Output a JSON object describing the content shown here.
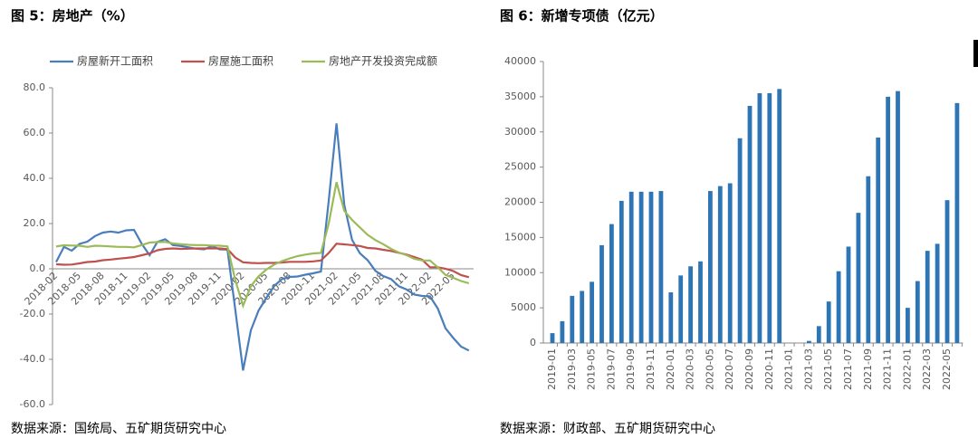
{
  "chart_data": [
    {
      "type": "line",
      "title": "图 5：房地产（%）",
      "source": "数据来源：国统局、五矿期货研究中心",
      "categories": [
        "2018-02",
        null,
        null,
        "2018-05",
        null,
        null,
        "2018-08",
        null,
        null,
        "2018-11",
        null,
        null,
        "2019-02",
        null,
        null,
        "2019-05",
        null,
        null,
        "2019-08",
        null,
        null,
        "2019-11",
        null,
        null,
        "2020-02",
        null,
        null,
        "2020-05",
        null,
        null,
        "2020-08",
        null,
        null,
        "2020-11",
        null,
        null,
        "2021-02",
        null,
        null,
        "2021-05",
        null,
        null,
        "2021-08",
        null,
        null,
        "2021-11",
        null,
        null,
        "2022-02",
        null,
        null,
        "2022-05",
        null,
        null
      ],
      "series": [
        {
          "name": "房屋新开工面积",
          "color": "#4a7ebb",
          "values": [
            3,
            9.7,
            8,
            11,
            12,
            14.5,
            16,
            16.5,
            16,
            17,
            17.2,
            11,
            6,
            11.9,
            13.1,
            10.5,
            10.1,
            9.5,
            8.9,
            8.6,
            10,
            8.6,
            8.5,
            -18,
            -44.9,
            -27.2,
            -18.4,
            -12.8,
            -7.6,
            -4.5,
            -3.6,
            -3.4,
            -2.6,
            -2,
            -1.2,
            30,
            64.3,
            28.2,
            12.8,
            6.9,
            3.8,
            -0.9,
            -3.2,
            -4.5,
            -7.7,
            -9.1,
            -11.4,
            -12,
            -12.2,
            -17.5,
            -26.3,
            -30.6,
            -34.4,
            -36.1
          ]
        },
        {
          "name": "房屋施工面积",
          "color": "#c0504d",
          "values": [
            2,
            1.8,
            1.9,
            2.4,
            3,
            3.2,
            3.8,
            4.1,
            4.5,
            4.8,
            5.2,
            6,
            6.8,
            8.2,
            8.8,
            9,
            8.8,
            8.9,
            9,
            9,
            9,
            9,
            8.7,
            5,
            2.9,
            2.6,
            2.5,
            2.6,
            2.6,
            2.8,
            3.1,
            3.1,
            3.1,
            3.3,
            3.7,
            7,
            11.1,
            10.8,
            10.5,
            10.1,
            9.2,
            9.0,
            8.4,
            7.9,
            7.1,
            6.3,
            5.2,
            4,
            0.7,
            0.7,
            0,
            -1.0,
            -2.8,
            -3.7
          ]
        },
        {
          "name": "房地产开发投资完成额",
          "color": "#9bbb59",
          "values": [
            9.9,
            10.4,
            10.3,
            10.2,
            9.7,
            10.2,
            10.1,
            9.9,
            9.7,
            9.7,
            9.5,
            10.5,
            11.6,
            11.8,
            11.9,
            11.2,
            10.9,
            10.6,
            10.5,
            10.5,
            10.3,
            10.2,
            9.9,
            -5,
            -16.3,
            -7.7,
            -3.3,
            -0.3,
            1.9,
            3.4,
            4.6,
            5.6,
            6.3,
            6.8,
            7.0,
            20,
            38.3,
            25.6,
            21.6,
            18.3,
            15.0,
            12.7,
            10.9,
            8.8,
            7.2,
            6.0,
            4.4,
            3.7,
            3.7,
            0.7,
            -2.7,
            -4.0,
            -5.4,
            -6.4
          ]
        }
      ],
      "ylim": [
        -60,
        80
      ],
      "yticks": [
        {
          "value": -60,
          "label": "-60.0"
        },
        {
          "value": -40,
          "label": "-40.0"
        },
        {
          "value": -20,
          "label": "-20.0"
        },
        {
          "value": 0,
          "label": "0.0"
        },
        {
          "value": 20,
          "label": "20.0"
        },
        {
          "value": 40,
          "label": "40.0"
        },
        {
          "value": 60,
          "label": "60.0"
        },
        {
          "value": 80,
          "label": "80.0"
        }
      ],
      "legend": "top"
    },
    {
      "type": "bar",
      "title": "图 6：新增专项债（亿元）",
      "source": "数据来源：财政部、五矿期货研究中心",
      "color": "#2e75b6",
      "categories": [
        "2019-01",
        null,
        "2019-03",
        null,
        "2019-05",
        null,
        "2019-07",
        null,
        "2019-09",
        null,
        "2019-11",
        null,
        "2020-01",
        null,
        "2020-03",
        null,
        "2020-05",
        null,
        "2020-07",
        null,
        "2020-09",
        null,
        "2020-11",
        null,
        "2021-01",
        null,
        "2021-03",
        null,
        "2021-05",
        null,
        "2021-07",
        null,
        "2021-09",
        null,
        "2021-11",
        null,
        "2022-01",
        null,
        "2022-03",
        null,
        "2022-05",
        null
      ],
      "values": [
        1400,
        3100,
        6700,
        7400,
        8700,
        13900,
        16900,
        20200,
        21500,
        21500,
        21500,
        21600,
        7200,
        9600,
        10900,
        11600,
        21600,
        22300,
        22700,
        29100,
        33700,
        35500,
        35500,
        36100,
        0,
        0,
        300,
        2400,
        5900,
        10200,
        13700,
        18500,
        23700,
        29200,
        35000,
        35800,
        5000,
        8800,
        13100,
        14100,
        20300,
        34100
      ],
      "ylim": [
        0,
        40000
      ],
      "yticks": [
        0,
        5000,
        10000,
        15000,
        20000,
        25000,
        30000,
        35000,
        40000
      ]
    }
  ]
}
